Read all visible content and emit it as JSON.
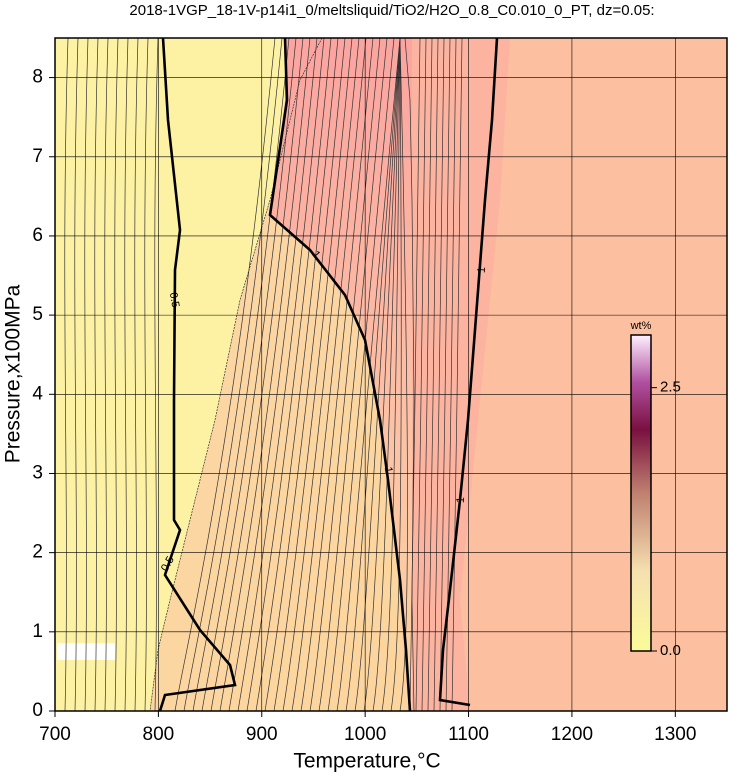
{
  "chart_data": {
    "type": "contour",
    "title": "2018-1VGP_18-1V-p14i1_0/meltsliquid/TiO2/H2O_0.8_C0.010_0_PT, dz=0.05:",
    "x_label": "Temperature,°C",
    "y_label": "Pressure,x100MPa",
    "xlim": [
      700,
      1350
    ],
    "xticks": [
      700,
      800,
      900,
      1000,
      1100,
      1200,
      1300
    ],
    "ylim": [
      0,
      8.5
    ],
    "yticks": [
      0,
      1,
      2,
      3,
      4,
      5,
      6,
      7,
      8
    ],
    "grid": true,
    "contour_labels": [
      "0.5",
      "0.5",
      "1",
      "1",
      "1",
      "1"
    ],
    "colorbar": {
      "label": "wt%",
      "lim": [
        0,
        3
      ],
      "ticks": [
        {
          "value": 0,
          "label": "0.0"
        },
        2.5
      ]
    }
  }
}
